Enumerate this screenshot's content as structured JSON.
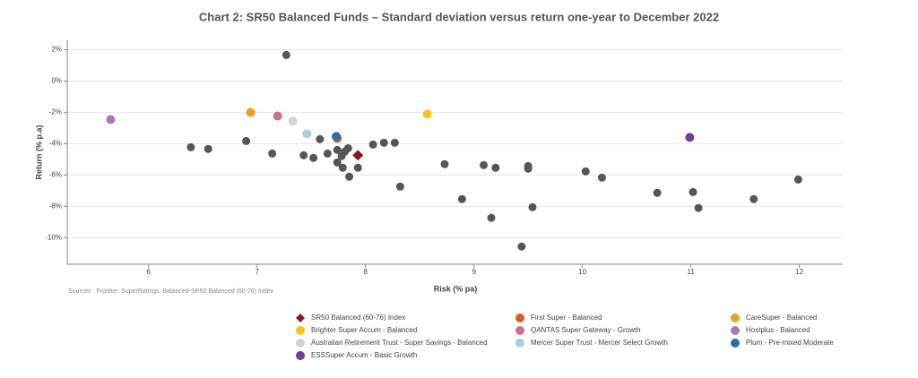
{
  "chart_data": {
    "type": "scatter",
    "title": "Chart 2:  SR50 Balanced Funds – Standard deviation versus  return one-year to December 2022",
    "x_label": "Risk (% pa)",
    "y_label": "Return (% p.a)",
    "source": "Sources :  Frontier, SuperRatings, Balanced-SR50 Balanced (60-76) Index",
    "xlim": [
      5.25,
      12.4
    ],
    "ylim": [
      -11.7,
      2.6
    ],
    "xticks": [
      6,
      7,
      8,
      9,
      10,
      11,
      12
    ],
    "yticks": [
      {
        "value": 2,
        "label": "2%"
      },
      {
        "value": 0,
        "label": "0%"
      },
      {
        "value": -2,
        "label": "-2%"
      },
      {
        "value": -4,
        "label": "-4%"
      },
      {
        "value": -6,
        "label": "-6%"
      },
      {
        "value": -8,
        "label": "-8%"
      },
      {
        "value": -10,
        "label": "-10%"
      }
    ],
    "grid": true,
    "other_funds": {
      "color": "#555555",
      "x": [
        7.27,
        6.39,
        6.55,
        6.9,
        7.14,
        7.43,
        7.52,
        7.58,
        7.65,
        7.74,
        7.74,
        7.78,
        7.79,
        7.81,
        7.84,
        7.85,
        7.93,
        8.07,
        8.17,
        8.27,
        8.32,
        8.73,
        8.89,
        9.09,
        9.16,
        9.2,
        9.5,
        9.5,
        9.54,
        9.44,
        10.03,
        10.18,
        10.69,
        11.02,
        11.07,
        11.58,
        11.99
      ],
      "values": [
        1.66,
        -4.23,
        -4.34,
        -3.83,
        -4.63,
        -4.74,
        -4.91,
        -3.71,
        -4.63,
        -4.4,
        -5.2,
        -4.8,
        -5.54,
        -4.51,
        -4.29,
        -6.11,
        -5.54,
        -4.06,
        -3.94,
        -3.94,
        -6.74,
        -5.31,
        -7.54,
        -5.37,
        -8.74,
        -5.54,
        -5.43,
        -5.6,
        -8.06,
        -10.57,
        -5.77,
        -6.17,
        -7.14,
        -7.09,
        -8.11,
        -7.54,
        -6.29
      ]
    },
    "series": [
      {
        "name": "SR50 Balanced (60-76) Index",
        "color": "#8b1a1a",
        "marker": "diamond",
        "x": [
          7.93
        ],
        "values": [
          -4.74
        ]
      },
      {
        "name": "First Super - Balanced",
        "color": "#d95f2a",
        "x": [
          7.74
        ],
        "values": [
          -3.66
        ]
      },
      {
        "name": "CareSuper - Balanced",
        "color": "#f0a020",
        "x": [
          6.94
        ],
        "values": [
          -2.0
        ]
      },
      {
        "name": "Brighter Super Accum - Balanced",
        "color": "#f5c518",
        "x": [
          8.57
        ],
        "values": [
          -2.11
        ]
      },
      {
        "name": "QANTAS Super Gateway - Growth",
        "color": "#d06f8a",
        "x": [
          7.19
        ],
        "values": [
          -2.23
        ]
      },
      {
        "name": "Hostplus - Balanced",
        "color": "#a77cb5",
        "x": [
          5.65
        ],
        "values": [
          -2.46
        ]
      },
      {
        "name": "Australian Retirement Trust - Super Savings  - Balanced",
        "color": "#d3d3d3",
        "x": [
          7.33
        ],
        "values": [
          -2.57
        ]
      },
      {
        "name": "Mercer Super Trust - Mercer Select Growth",
        "color": "#a9cfe3",
        "x": [
          7.46
        ],
        "values": [
          -3.37
        ]
      },
      {
        "name": "Plum - Pre-mixed Moderate",
        "color": "#2f6fa3",
        "x": [
          7.73
        ],
        "values": [
          -3.54
        ]
      },
      {
        "name": "ESSSuper Accum - Basic Growth",
        "color": "#6a3d9a",
        "x": [
          10.99
        ],
        "values": [
          -3.6
        ]
      }
    ]
  }
}
